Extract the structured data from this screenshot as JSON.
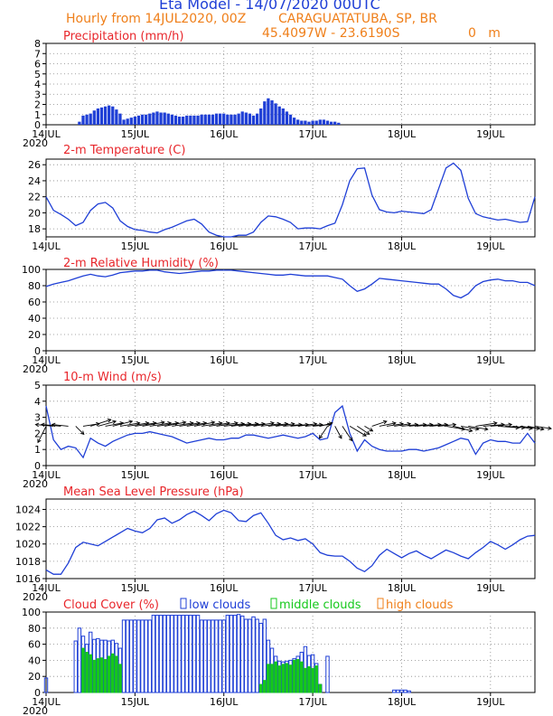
{
  "header": {
    "title": "Eta Model - 14/07/2020 00UTC",
    "subtitle_left": "Hourly from 14JUL2020, 00Z",
    "location": "CARAGUATATUBA, SP, BR",
    "coords": "45.4097W - 23.6190S",
    "elevation": "0   m"
  },
  "time_axis": {
    "ticks": [
      {
        "label": "14JUL",
        "hour": 0
      },
      {
        "label": "15JUL",
        "hour": 24
      },
      {
        "label": "16JUL",
        "hour": 48
      },
      {
        "label": "17JUL",
        "hour": 72
      },
      {
        "label": "18JUL",
        "hour": 96
      },
      {
        "label": "19JUL",
        "hour": 120
      }
    ],
    "year_label": "2020",
    "range_hours": [
      0,
      132
    ]
  },
  "colors": {
    "line": "#1f3fd6",
    "panel_title": "#e8262b",
    "low_clouds": "#1f3fd6",
    "middle_clouds": "#15c81b",
    "high_clouds": "#ef7f1a",
    "wind_arrow": "#000000",
    "grid": "#888888"
  },
  "chart_data": [
    {
      "type": "bar",
      "title": "Precipitation (mm/h)",
      "ylim": [
        0,
        8
      ],
      "yticks": [
        0,
        1,
        2,
        3,
        4,
        5,
        6,
        7,
        8
      ],
      "grid": true,
      "x_hours": [
        9,
        10,
        11,
        12,
        13,
        14,
        15,
        16,
        17,
        18,
        19,
        20,
        21,
        22,
        23,
        24,
        25,
        26,
        27,
        28,
        29,
        30,
        31,
        32,
        33,
        34,
        35,
        36,
        37,
        38,
        39,
        40,
        41,
        42,
        43,
        44,
        45,
        46,
        47,
        48,
        49,
        50,
        51,
        52,
        53,
        54,
        55,
        56,
        57,
        58,
        59,
        60,
        61,
        62,
        63,
        64,
        65,
        66,
        67,
        68,
        69,
        70,
        71,
        72,
        73,
        74,
        75,
        76,
        77,
        78,
        79
      ],
      "values": [
        0.3,
        0.9,
        1.0,
        1.1,
        1.4,
        1.6,
        1.7,
        1.8,
        1.9,
        1.8,
        1.5,
        1.1,
        0.5,
        0.6,
        0.7,
        0.8,
        0.9,
        1.0,
        1.0,
        1.1,
        1.2,
        1.3,
        1.2,
        1.2,
        1.1,
        1.0,
        0.9,
        0.8,
        0.8,
        0.9,
        0.9,
        0.9,
        0.9,
        1.0,
        1.0,
        1.0,
        1.0,
        1.1,
        1.1,
        1.1,
        1.0,
        1.0,
        1.0,
        1.1,
        1.3,
        1.2,
        1.1,
        0.9,
        1.1,
        1.6,
        2.3,
        2.6,
        2.4,
        2.1,
        1.8,
        1.6,
        1.3,
        1.0,
        0.7,
        0.5,
        0.4,
        0.4,
        0.3,
        0.4,
        0.4,
        0.5,
        0.5,
        0.4,
        0.3,
        0.3,
        0.2
      ]
    },
    {
      "type": "line",
      "title": "2-m Temperature (C)",
      "ylim": [
        17,
        26.7
      ],
      "yticks": [
        18,
        20,
        22,
        24,
        26
      ],
      "grid": true,
      "x": [
        0,
        2,
        4,
        6,
        8,
        10,
        12,
        14,
        16,
        18,
        20,
        22,
        24,
        26,
        28,
        30,
        32,
        34,
        36,
        38,
        40,
        42,
        44,
        46,
        48,
        50,
        52,
        54,
        56,
        58,
        60,
        62,
        64,
        66,
        68,
        70,
        72,
        74,
        76,
        78,
        80,
        82,
        84,
        86,
        88,
        90,
        92,
        94,
        96,
        98,
        100,
        102,
        104,
        106,
        108,
        110,
        112,
        114,
        116,
        118,
        120,
        122,
        124,
        126,
        128,
        130,
        132
      ],
      "y": [
        22.0,
        20.3,
        19.8,
        19.2,
        18.4,
        18.8,
        20.3,
        21.1,
        21.3,
        20.6,
        19.0,
        18.3,
        17.9,
        17.8,
        17.6,
        17.5,
        17.9,
        18.2,
        18.6,
        19.0,
        19.2,
        18.6,
        17.6,
        17.2,
        17.0,
        17.0,
        17.2,
        17.2,
        17.6,
        18.8,
        19.6,
        19.5,
        19.2,
        18.8,
        18.0,
        18.1,
        18.1,
        18.0,
        18.4,
        18.7,
        21.0,
        24.0,
        25.5,
        25.6,
        22.2,
        20.4,
        20.1,
        20.0,
        20.2,
        20.1,
        20.0,
        19.9,
        20.4,
        23.0,
        25.6,
        26.2,
        25.3,
        21.8,
        19.9,
        19.5,
        19.3,
        19.1,
        19.2,
        19.0,
        18.8,
        18.9,
        22.0
      ]
    },
    {
      "type": "line",
      "title": "2-m Relative Humidity (%)",
      "ylim": [
        0,
        100
      ],
      "yticks": [
        0,
        20,
        40,
        60,
        80,
        100
      ],
      "grid": true,
      "x": [
        0,
        2,
        4,
        6,
        8,
        10,
        12,
        14,
        16,
        18,
        20,
        22,
        24,
        26,
        28,
        30,
        32,
        34,
        36,
        38,
        40,
        42,
        44,
        46,
        48,
        50,
        52,
        54,
        56,
        58,
        60,
        62,
        64,
        66,
        68,
        70,
        72,
        74,
        76,
        78,
        80,
        82,
        84,
        86,
        88,
        90,
        92,
        94,
        96,
        98,
        100,
        102,
        104,
        106,
        108,
        110,
        112,
        114,
        116,
        118,
        120,
        122,
        124,
        126,
        128,
        130,
        132
      ],
      "y": [
        79,
        82,
        84,
        86,
        89,
        92,
        94,
        92,
        91,
        93,
        96,
        97,
        98,
        98,
        99,
        99,
        97,
        96,
        95,
        96,
        97,
        98,
        98,
        99,
        99,
        99,
        98,
        97,
        96,
        95,
        94,
        93,
        93,
        94,
        93,
        92,
        92,
        92,
        92,
        90,
        88,
        80,
        73,
        76,
        82,
        89,
        88,
        87,
        86,
        85,
        84,
        83,
        82,
        82,
        76,
        68,
        65,
        70,
        80,
        85,
        87,
        88,
        86,
        86,
        84,
        84,
        80
      ]
    },
    {
      "type": "line",
      "title": "10-m Wind (m/s)",
      "ylim": [
        0,
        5
      ],
      "yticks": [
        0,
        1,
        2,
        3,
        4,
        5
      ],
      "grid": true,
      "arrows": "wind direction vectors (black) drawn along the speed curve",
      "x": [
        0,
        2,
        4,
        6,
        8,
        10,
        12,
        14,
        16,
        18,
        20,
        22,
        24,
        26,
        28,
        30,
        32,
        34,
        36,
        38,
        40,
        42,
        44,
        46,
        48,
        50,
        52,
        54,
        56,
        58,
        60,
        62,
        64,
        66,
        68,
        70,
        72,
        74,
        76,
        78,
        80,
        82,
        84,
        86,
        88,
        90,
        92,
        94,
        96,
        98,
        100,
        102,
        104,
        106,
        108,
        110,
        112,
        114,
        116,
        118,
        120,
        122,
        124,
        126,
        128,
        130,
        132
      ],
      "y": [
        3.7,
        1.6,
        1.0,
        1.2,
        1.1,
        0.5,
        1.7,
        1.4,
        1.2,
        1.5,
        1.7,
        1.9,
        2.0,
        2.0,
        2.1,
        2.0,
        1.9,
        1.8,
        1.6,
        1.4,
        1.5,
        1.6,
        1.7,
        1.6,
        1.6,
        1.7,
        1.7,
        1.9,
        1.9,
        1.8,
        1.7,
        1.8,
        1.9,
        1.8,
        1.7,
        1.8,
        2.0,
        1.6,
        1.7,
        3.3,
        3.7,
        2.0,
        0.9,
        1.6,
        1.2,
        1.0,
        0.9,
        0.9,
        0.9,
        1.0,
        1.0,
        0.9,
        1.0,
        1.1,
        1.3,
        1.5,
        1.7,
        1.6,
        0.7,
        1.4,
        1.6,
        1.5,
        1.5,
        1.4,
        1.4,
        2.0,
        1.4
      ],
      "arrow_u": [
        -1,
        -2.2,
        -2.4,
        -2.0,
        1,
        2,
        2.5,
        2.2,
        2.2,
        2.4,
        2.4,
        2.6,
        2.6,
        2.7,
        2.6,
        2.6,
        2.6,
        2.6,
        2.5,
        2.4,
        2.5,
        2.5,
        2.5,
        2.6,
        2.5,
        2.4,
        2.4,
        2.3,
        2.5,
        2.4,
        2.4,
        2.3,
        2.3,
        2.2,
        2.3,
        2.1,
        2.2,
        1.5,
        -1,
        0.8,
        1.2,
        2,
        1.5,
        1,
        1.8,
        2,
        2,
        2,
        2,
        2.1,
        2,
        2.1,
        2,
        2.1,
        2.3,
        2.3,
        2.2,
        2.4,
        2.6,
        2.6,
        2.6,
        2.6,
        2.4,
        2.4,
        2.4,
        2.0,
        2.0
      ],
      "arrow_v": [
        -2,
        0.2,
        0.2,
        0.2,
        -1,
        0.3,
        0.8,
        0.6,
        0.4,
        0.6,
        0.4,
        0.4,
        0.4,
        0.5,
        0.4,
        0.4,
        0.5,
        0.4,
        0.4,
        0.4,
        0.5,
        0.4,
        0.4,
        0.4,
        0.3,
        0.3,
        0.3,
        0.3,
        0.4,
        0.3,
        0.3,
        0.3,
        0.2,
        0.2,
        0.3,
        0.2,
        0.2,
        0.4,
        -1.5,
        -1.5,
        -1.8,
        -1.2,
        -1,
        -0.6,
        0.6,
        0.4,
        0.3,
        0.3,
        0.2,
        0.2,
        0.2,
        0.2,
        0.2,
        0.2,
        -0.4,
        -0.6,
        -0.4,
        -0.4,
        0.4,
        0.2,
        0.2,
        -0.2,
        -0.2,
        -0.3,
        -0.3,
        -0.4,
        -0.3
      ]
    },
    {
      "type": "line",
      "title": "Mean Sea Level Pressure (hPa)",
      "ylim": [
        1016,
        1025.2
      ],
      "yticks": [
        1016,
        1018,
        1020,
        1022,
        1024
      ],
      "grid": true,
      "x": [
        0,
        2,
        4,
        6,
        8,
        10,
        12,
        14,
        16,
        18,
        20,
        22,
        24,
        26,
        28,
        30,
        32,
        34,
        36,
        38,
        40,
        42,
        44,
        46,
        48,
        50,
        52,
        54,
        56,
        58,
        60,
        62,
        64,
        66,
        68,
        70,
        72,
        74,
        76,
        78,
        80,
        82,
        84,
        86,
        88,
        90,
        92,
        94,
        96,
        98,
        100,
        102,
        104,
        106,
        108,
        110,
        112,
        114,
        116,
        118,
        120,
        122,
        124,
        126,
        128,
        130,
        132
      ],
      "y": [
        1017.0,
        1016.5,
        1016.5,
        1017.8,
        1019.6,
        1020.2,
        1020.0,
        1019.8,
        1020.3,
        1020.8,
        1021.3,
        1021.8,
        1021.5,
        1021.3,
        1021.8,
        1022.8,
        1023.0,
        1022.4,
        1022.8,
        1023.4,
        1023.8,
        1023.3,
        1022.7,
        1023.5,
        1023.9,
        1023.6,
        1022.7,
        1022.6,
        1023.3,
        1023.6,
        1022.4,
        1021.0,
        1020.5,
        1020.7,
        1020.4,
        1020.6,
        1020.0,
        1019.0,
        1018.7,
        1018.6,
        1018.6,
        1018.0,
        1017.2,
        1016.8,
        1017.5,
        1018.7,
        1019.4,
        1018.9,
        1018.4,
        1018.9,
        1019.2,
        1018.7,
        1018.3,
        1018.8,
        1019.3,
        1019.0,
        1018.6,
        1018.3,
        1019.0,
        1019.6,
        1020.3,
        1019.9,
        1019.4,
        1019.9,
        1020.5,
        1020.9,
        1021.0
      ]
    },
    {
      "type": "bar",
      "title": "Cloud Cover (%)",
      "legend": [
        "low clouds",
        "middle clouds",
        "high clouds"
      ],
      "legend_placement": "top",
      "ylim": [
        0,
        100
      ],
      "yticks": [
        0,
        20,
        40,
        60,
        80,
        100
      ],
      "grid": true,
      "series": [
        {
          "name": "low clouds",
          "x_hours": [
            0,
            8,
            9,
            10,
            11,
            12,
            13,
            14,
            15,
            16,
            17,
            18,
            19,
            20,
            21,
            22,
            23,
            24,
            25,
            26,
            27,
            28,
            29,
            30,
            31,
            32,
            33,
            34,
            35,
            36,
            37,
            38,
            39,
            40,
            41,
            42,
            43,
            44,
            45,
            46,
            47,
            48,
            49,
            50,
            51,
            52,
            53,
            54,
            55,
            56,
            57,
            58,
            59,
            60,
            61,
            62,
            63,
            64,
            65,
            66,
            67,
            68,
            69,
            70,
            71,
            72,
            73,
            74,
            76,
            94,
            95,
            96,
            97,
            98
          ],
          "values": [
            18,
            64,
            80,
            70,
            60,
            75,
            66,
            67,
            65,
            65,
            64,
            65,
            61,
            55,
            90,
            90,
            90,
            90,
            90,
            90,
            90,
            90,
            96,
            96,
            96,
            96,
            96,
            96,
            96,
            96,
            96,
            96,
            96,
            96,
            96,
            90,
            90,
            90,
            90,
            90,
            90,
            90,
            96,
            96,
            96,
            97,
            95,
            91,
            91,
            94,
            91,
            86,
            91,
            65,
            55,
            45,
            39,
            38,
            39,
            40,
            42,
            45,
            50,
            57,
            46,
            47,
            36,
            10,
            45,
            3,
            3,
            3,
            3,
            2
          ]
        },
        {
          "name": "middle clouds",
          "x_hours": [
            10,
            11,
            12,
            13,
            14,
            15,
            16,
            17,
            18,
            19,
            20,
            58,
            59,
            60,
            61,
            62,
            63,
            64,
            65,
            66,
            67,
            68,
            69,
            70,
            71,
            72,
            73,
            74
          ],
          "values": [
            55,
            50,
            47,
            40,
            42,
            43,
            41,
            45,
            48,
            45,
            35,
            10,
            15,
            35,
            35,
            38,
            33,
            35,
            36,
            34,
            40,
            41,
            38,
            30,
            32,
            30,
            33,
            10
          ]
        },
        {
          "name": "high clouds",
          "x_hours": [],
          "values": []
        }
      ]
    }
  ]
}
